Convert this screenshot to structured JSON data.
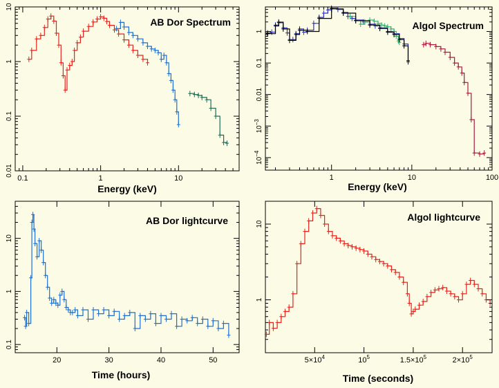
{
  "colors": {
    "background": "#fcfce6",
    "red": "#e8201c",
    "blue": "#1c6ed0",
    "teal": "#1f6b55",
    "green": "#2fb070",
    "darkblue": "#2a30c0",
    "maroon": "#a8183c",
    "black": "#000000"
  },
  "chart_data": [
    {
      "id": "abdor-spectrum",
      "type": "line",
      "title": "AB Dor Spectrum",
      "xlabel": "Energy (keV)",
      "ylabel": "",
      "xscale": "log",
      "yscale": "log",
      "xlim": [
        0.08,
        60
      ],
      "ylim": [
        0.01,
        10
      ],
      "x_ticks": [
        {
          "v": 0.1,
          "label": "0.1"
        },
        {
          "v": 1,
          "label": "1"
        },
        {
          "v": 10,
          "label": "10"
        }
      ],
      "y_ticks": [
        {
          "v": 0.01,
          "label": "0.01"
        },
        {
          "v": 0.1,
          "label": "0.1"
        },
        {
          "v": 1,
          "label": "1"
        },
        {
          "v": 10,
          "label": "10"
        }
      ],
      "series": [
        {
          "color": "red",
          "x": [
            0.12,
            0.13,
            0.15,
            0.17,
            0.19,
            0.21,
            0.23,
            0.25,
            0.27,
            0.29,
            0.31,
            0.33,
            0.35,
            0.37,
            0.4,
            0.43,
            0.46,
            0.5,
            0.55,
            0.6,
            0.7,
            0.8,
            0.9,
            1.0,
            1.1,
            1.2,
            1.3,
            1.5,
            1.7,
            2.0,
            2.3,
            2.6,
            3.0,
            3.5,
            4.0
          ],
          "y": [
            1.1,
            1.6,
            2.6,
            3.0,
            4.2,
            6.0,
            6.8,
            5.5,
            3.3,
            2.0,
            0.95,
            0.55,
            0.3,
            0.7,
            0.85,
            1.0,
            1.6,
            2.2,
            2.8,
            3.6,
            4.4,
            5.3,
            6.0,
            6.6,
            6.2,
            5.4,
            4.6,
            3.8,
            3.2,
            2.5,
            2.0,
            1.6,
            1.3,
            1.1,
            0.95
          ]
        },
        {
          "color": "blue",
          "x": [
            1.6,
            1.8,
            2.0,
            2.3,
            2.6,
            3.0,
            3.5,
            4.0,
            4.5,
            5.0,
            5.5,
            6.0,
            6.5,
            7.0,
            7.5,
            8.0,
            8.5,
            9.0,
            9.5,
            10.0
          ],
          "y": [
            4.0,
            5.2,
            4.3,
            3.4,
            3.0,
            2.6,
            2.2,
            1.9,
            1.7,
            1.6,
            1.45,
            1.1,
            1.3,
            0.95,
            0.6,
            0.45,
            0.3,
            0.2,
            0.12,
            0.07
          ]
        },
        {
          "color": "teal",
          "x": [
            14,
            16,
            18,
            20,
            23,
            26,
            30,
            34,
            38,
            42
          ],
          "y": [
            0.26,
            0.25,
            0.24,
            0.22,
            0.2,
            0.14,
            0.1,
            0.045,
            0.033,
            0.032
          ]
        }
      ]
    },
    {
      "id": "algol-spectrum",
      "type": "line",
      "title": "Algol Spectrum",
      "xlabel": "Energy (keV)",
      "ylabel": "",
      "xscale": "log",
      "yscale": "log",
      "xlim": [
        0.15,
        100
      ],
      "ylim": [
        4e-05,
        6
      ],
      "x_ticks": [
        {
          "v": 1,
          "label": "1"
        },
        {
          "v": 10,
          "label": "10"
        },
        {
          "v": 100,
          "label": "100"
        }
      ],
      "y_ticks": [
        {
          "v": 0.0001,
          "label": "10",
          "sup": "−4"
        },
        {
          "v": 0.001,
          "label": "10",
          "sup": "−3"
        },
        {
          "v": 0.01,
          "label": "0.01"
        },
        {
          "v": 0.1,
          "label": "0.1"
        },
        {
          "v": 1,
          "label": "1"
        }
      ],
      "series": [
        {
          "color": "darkblue",
          "x": [
            0.16,
            0.18,
            0.2,
            0.22,
            0.25,
            0.28,
            0.3,
            0.33,
            0.36,
            0.4,
            0.45,
            0.5,
            0.6,
            0.7,
            0.8,
            0.9,
            1.0,
            1.2,
            1.4,
            1.6,
            1.8,
            2.0,
            2.5,
            3.0,
            3.5,
            4.0,
            5.0,
            6.0,
            7.0,
            8.0,
            9.0
          ],
          "y": [
            0.9,
            0.95,
            1.6,
            2.0,
            1.3,
            0.9,
            0.55,
            0.55,
            0.85,
            1.2,
            0.95,
            1.1,
            1.8,
            2.8,
            3.8,
            4.8,
            5.5,
            5.0,
            4.0,
            3.0,
            2.6,
            2.3,
            2.0,
            1.7,
            1.5,
            1.3,
            1.0,
            0.85,
            0.6,
            0.4,
            0.12
          ]
        },
        {
          "color": "green",
          "x": [
            1.7,
            2.0,
            2.3,
            2.6,
            3.0,
            3.4,
            3.8,
            4.2,
            4.6,
            5.0,
            5.5,
            6.0,
            6.4,
            6.8,
            7.0
          ],
          "y": [
            3.0,
            2.2,
            1.7,
            2.0,
            2.3,
            2.1,
            1.8,
            1.6,
            1.5,
            1.4,
            1.2,
            1.0,
            0.7,
            0.5,
            0.45
          ]
        },
        {
          "color": "maroon",
          "x": [
            14,
            15,
            17,
            20,
            23,
            26,
            30,
            34,
            38,
            42,
            45,
            50,
            55,
            60,
            70,
            80
          ],
          "y": [
            0.38,
            0.42,
            0.38,
            0.33,
            0.28,
            0.22,
            0.15,
            0.1,
            0.075,
            0.048,
            0.024,
            0.011,
            0.0016,
            0.00014,
            0.00013,
            0.00014
          ]
        },
        {
          "color": "black",
          "x": [
            0.16,
            0.2,
            0.22,
            0.25,
            0.3,
            0.36,
            0.4,
            0.5,
            0.7,
            1.0,
            1.4,
            2.0,
            3.0,
            4.0,
            5.0,
            6.0,
            7.0,
            8.0,
            9.0
          ],
          "y": [
            0.85,
            1.5,
            1.9,
            1.2,
            0.52,
            0.8,
            1.1,
            1.0,
            2.6,
            5.2,
            3.8,
            2.2,
            1.6,
            1.25,
            0.95,
            0.8,
            0.55,
            0.35,
            0.11
          ]
        }
      ]
    },
    {
      "id": "abdor-lightcurve",
      "type": "line",
      "title": "AB Dor lightcurve",
      "xlabel": "Time (hours)",
      "ylabel": "",
      "xscale": "linear",
      "yscale": "log",
      "xlim": [
        12,
        55
      ],
      "ylim": [
        0.07,
        50
      ],
      "x_ticks": [
        {
          "v": 20,
          "label": "20"
        },
        {
          "v": 30,
          "label": "30"
        },
        {
          "v": 40,
          "label": "40"
        },
        {
          "v": 50,
          "label": "50"
        }
      ],
      "y_ticks": [
        {
          "v": 0.1,
          "label": "0.1"
        },
        {
          "v": 1,
          "label": "1"
        },
        {
          "v": 10,
          "label": "10"
        }
      ],
      "series": [
        {
          "color": "blue",
          "x": [
            13.8,
            14.0,
            14.2,
            14.6,
            15.0,
            15.2,
            15.4,
            15.6,
            15.8,
            16.2,
            16.6,
            17.0,
            17.4,
            17.8,
            18.2,
            18.6,
            19.0,
            19.4,
            19.8,
            20.2,
            20.6,
            21.0,
            21.4,
            21.8,
            22.2,
            22.6,
            23.0,
            23.5,
            24,
            25,
            26,
            27,
            28,
            29,
            30,
            31,
            32,
            33,
            34,
            35,
            36,
            37,
            38,
            39,
            40,
            41,
            42,
            43,
            44,
            45,
            46,
            47,
            48,
            49,
            50,
            51,
            52,
            53
          ],
          "y": [
            0.32,
            0.22,
            0.4,
            0.25,
            1.8,
            20.0,
            28.0,
            15.0,
            8.0,
            4.5,
            9.0,
            6.0,
            3.5,
            2.0,
            1.2,
            0.75,
            0.6,
            0.7,
            0.6,
            0.55,
            0.85,
            1.0,
            0.7,
            0.5,
            0.45,
            0.4,
            0.4,
            0.45,
            0.35,
            0.45,
            0.3,
            0.45,
            0.38,
            0.45,
            0.35,
            0.42,
            0.3,
            0.35,
            0.4,
            0.2,
            0.35,
            0.3,
            0.38,
            0.25,
            0.35,
            0.3,
            0.38,
            0.22,
            0.3,
            0.28,
            0.32,
            0.25,
            0.3,
            0.22,
            0.28,
            0.2,
            0.25,
            0.15
          ]
        }
      ]
    },
    {
      "id": "algol-lightcurve",
      "type": "line",
      "title": "Algol lightcurve",
      "xlabel": "Time (seconds)",
      "ylabel": "",
      "xscale": "linear",
      "yscale": "log",
      "xlim": [
        0,
        230000
      ],
      "ylim": [
        0.2,
        20
      ],
      "x_ticks": [
        {
          "v": 50000,
          "label": "5×10",
          "sup": "4"
        },
        {
          "v": 100000,
          "label": "10",
          "sup": "5"
        },
        {
          "v": 150000,
          "label": "1.5×10",
          "sup": "5"
        },
        {
          "v": 200000,
          "label": "2×10",
          "sup": "5"
        }
      ],
      "y_ticks": [
        {
          "v": 1,
          "label": "1"
        },
        {
          "v": 10,
          "label": "10"
        }
      ],
      "series": [
        {
          "color": "red",
          "x": [
            1000,
            4000,
            8000,
            12000,
            16000,
            20000,
            24000,
            28000,
            32000,
            36000,
            40000,
            44000,
            48000,
            52000,
            56000,
            60000,
            64000,
            68000,
            72000,
            76000,
            80000,
            84000,
            88000,
            92000,
            96000,
            100000,
            104000,
            108000,
            112000,
            116000,
            120000,
            124000,
            128000,
            132000,
            136000,
            140000,
            144000,
            146000,
            148000,
            150000,
            152000,
            156000,
            160000,
            164000,
            168000,
            172000,
            176000,
            180000,
            184000,
            188000,
            192000,
            196000,
            200000,
            204000,
            208000,
            212000,
            216000,
            220000,
            224000,
            228000
          ],
          "y": [
            0.35,
            0.5,
            0.42,
            0.5,
            0.6,
            0.7,
            0.8,
            1.2,
            3.0,
            5.5,
            8.0,
            11.0,
            14.0,
            16.0,
            13.0,
            10.0,
            8.0,
            7.0,
            6.5,
            6.0,
            5.5,
            5.2,
            5.0,
            4.8,
            4.6,
            4.4,
            4.0,
            3.7,
            3.4,
            3.2,
            3.0,
            2.8,
            2.5,
            2.3,
            2.0,
            1.7,
            1.2,
            0.9,
            0.65,
            0.7,
            0.75,
            0.85,
            0.95,
            1.1,
            1.25,
            1.35,
            1.4,
            1.45,
            1.3,
            1.2,
            1.1,
            1.0,
            1.2,
            1.6,
            1.8,
            1.6,
            1.4,
            1.2,
            1.0,
            0.9
          ]
        }
      ]
    }
  ]
}
